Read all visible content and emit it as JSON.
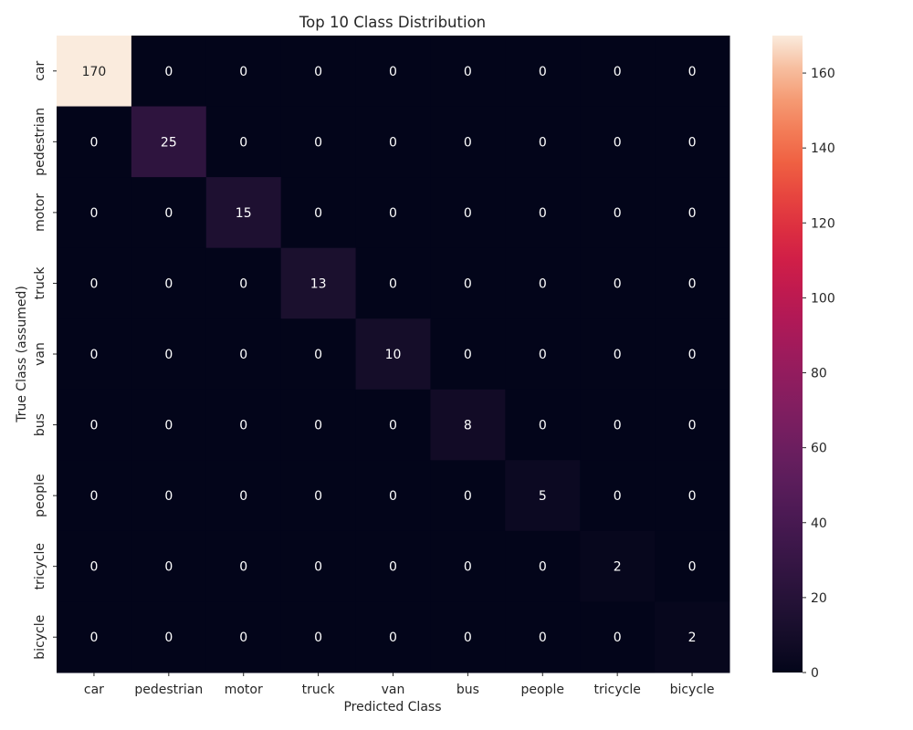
{
  "chart_data": {
    "type": "heatmap",
    "title": "Top 10 Class Distribution",
    "xlabel": "Predicted Class",
    "ylabel": "True Class (assumed)",
    "x_categories": [
      "car",
      "pedestrian",
      "motor",
      "truck",
      "van",
      "bus",
      "people",
      "tricycle",
      "bicycle"
    ],
    "y_categories": [
      "car",
      "pedestrian",
      "motor",
      "truck",
      "van",
      "bus",
      "people",
      "tricycle",
      "bicycle"
    ],
    "values": [
      [
        170,
        0,
        0,
        0,
        0,
        0,
        0,
        0,
        0
      ],
      [
        0,
        25,
        0,
        0,
        0,
        0,
        0,
        0,
        0
      ],
      [
        0,
        0,
        15,
        0,
        0,
        0,
        0,
        0,
        0
      ],
      [
        0,
        0,
        0,
        13,
        0,
        0,
        0,
        0,
        0
      ],
      [
        0,
        0,
        0,
        0,
        10,
        0,
        0,
        0,
        0
      ],
      [
        0,
        0,
        0,
        0,
        0,
        8,
        0,
        0,
        0
      ],
      [
        0,
        0,
        0,
        0,
        0,
        0,
        5,
        0,
        0
      ],
      [
        0,
        0,
        0,
        0,
        0,
        0,
        0,
        2,
        0
      ],
      [
        0,
        0,
        0,
        0,
        0,
        0,
        0,
        0,
        2
      ]
    ],
    "colorbar": {
      "range": [
        0,
        170
      ],
      "ticks": [
        0,
        20,
        40,
        60,
        80,
        100,
        120,
        140,
        160
      ],
      "colormap": "rocket",
      "low_color": "#03051a",
      "high_color": "#faebdd"
    },
    "annotations": true
  }
}
